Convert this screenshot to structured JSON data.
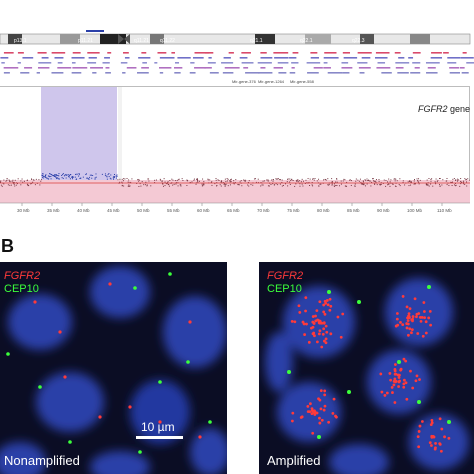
{
  "panel_a": {
    "gene_label_gene": "FGFR2",
    "gene_label_suffix": " gene",
    "band_labels": [
      "p13.1",
      "p11.21",
      "q11.21",
      "q11.22",
      "q21.1",
      "q22.1",
      "q22.3"
    ],
    "track_labels": [
      "Mir-gene-376",
      "Mir-gene-1264",
      "Mir-gene-558"
    ],
    "axis_ticks": [
      "30 Mb",
      "35 Mb",
      "40 Mb",
      "45 Mb",
      "50 Mb",
      "55 Mb",
      "60 Mb",
      "65 Mb",
      "70 Mb",
      "75 Mb",
      "80 Mb",
      "85 Mb",
      "90 Mb",
      "100 Mb",
      "110 Mb"
    ]
  },
  "panel_b": {
    "letter": "B",
    "left_image": {
      "probe_red": "FGFR2",
      "probe_green": "CEP10",
      "caption": "Nonamplified",
      "scale_label": "10 µm"
    },
    "right_image": {
      "probe_red": "FGFR2",
      "probe_green": "CEP10",
      "caption": "Amplified"
    }
  },
  "colors": {
    "nucleus_blue": "#2a3fa8",
    "fgfr2_red": "#ff3a3a",
    "cep10_green": "#3bff3b",
    "highlight_region": "#cfc6ec",
    "cnv_band": "#f4c9d4"
  }
}
